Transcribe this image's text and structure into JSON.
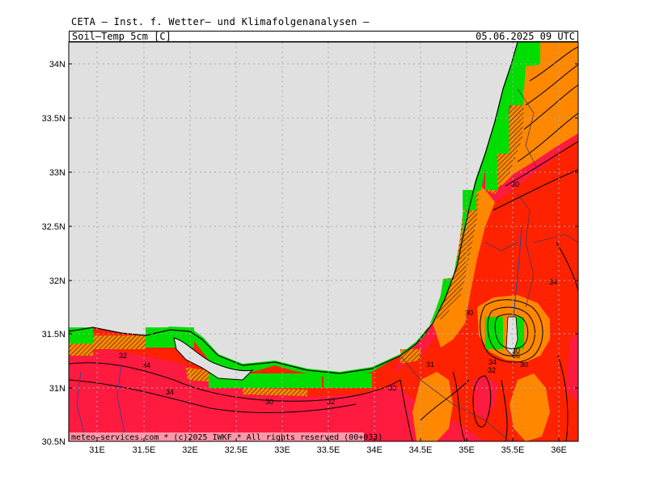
{
  "header": {
    "title": "CETA — Inst. f. Wetter— und Klimafolgenanalysen —",
    "parameter": "Soil—Temp_5cm_[C]",
    "datetime": "05.06.2025  09 UTC"
  },
  "map": {
    "lat_ticks": [
      "34N",
      "33.5N",
      "33N",
      "32.5N",
      "32N",
      "31.5N",
      "31N",
      "30.5N"
    ],
    "lon_ticks": [
      "31E",
      "31.5E",
      "32E",
      "32.5E",
      "33E",
      "33.5E",
      "34E",
      "34.5E",
      "35E",
      "35.5E",
      "36E"
    ],
    "sea_color": "#e0e0e0",
    "colors": {
      "green": "#00dd00",
      "orange": "#ff8800",
      "red": "#ff2200",
      "crimson": "#ff1a40",
      "dark_orange": "#ff5500"
    },
    "contour_labels": [
      "32",
      "34",
      "34",
      "30",
      "32",
      "33",
      "31",
      "30",
      "30",
      "34",
      "32",
      "34",
      "26",
      "30",
      "30"
    ],
    "copyright": "meteo—services.com * (c)2025 IWKF * All rights reserved (00+033)"
  }
}
